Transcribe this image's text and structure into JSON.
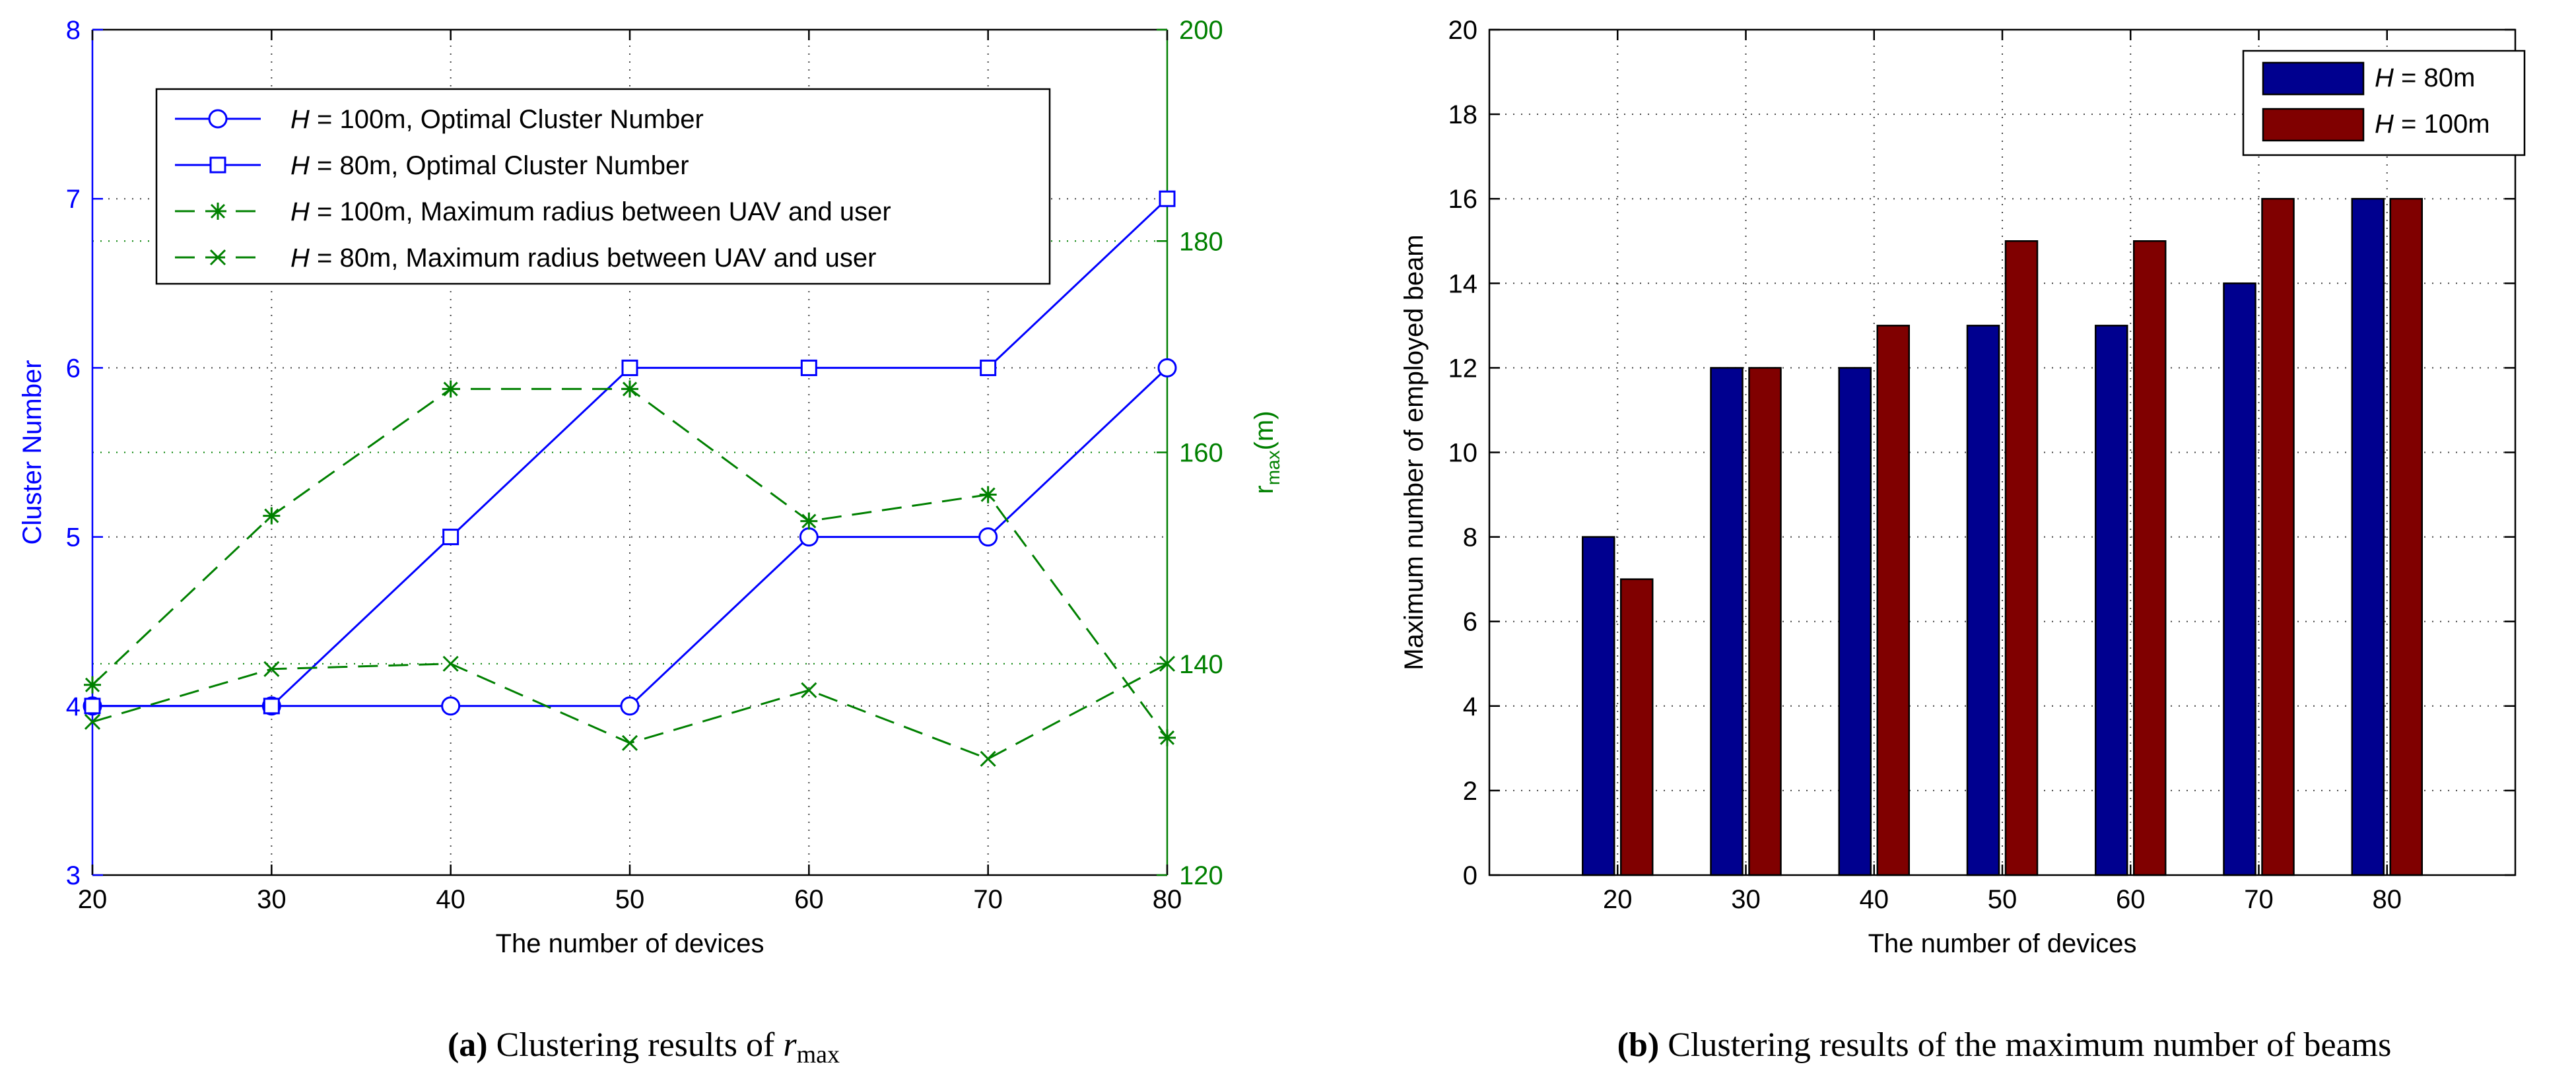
{
  "chart_data": [
    {
      "id": "a",
      "type": "line",
      "caption": {
        "label": "(a)",
        "text": "Clustering results of",
        "math": "r",
        "math_sub": "max"
      },
      "xlabel": "The number of devices",
      "x": [
        20,
        30,
        40,
        50,
        60,
        70,
        80
      ],
      "xlim": [
        20,
        80
      ],
      "xticks": [
        "20",
        "30",
        "40",
        "50",
        "60",
        "70",
        "80"
      ],
      "ylabel_left": "Cluster Number",
      "ylim_left": [
        3,
        8
      ],
      "yticks_left": [
        "3",
        "4",
        "5",
        "6",
        "7",
        "8"
      ],
      "ylabel_right": {
        "base": "r",
        "sub": "max",
        "suffix": "(m)"
      },
      "ylim_right": [
        120,
        200
      ],
      "yticks_right": [
        "120",
        "140",
        "160",
        "180",
        "200"
      ],
      "legend_location": "top-left",
      "series": [
        {
          "axis": "left",
          "style": "solid",
          "marker": "circle",
          "color": "#0000ff",
          "legend": {
            "var": "H",
            "rest": " = 100m, Optimal Cluster Number"
          },
          "values": [
            4,
            4,
            4,
            4,
            5,
            5,
            6
          ]
        },
        {
          "axis": "left",
          "style": "solid",
          "marker": "square",
          "color": "#0000ff",
          "legend": {
            "var": "H",
            "rest": " = 80m, Optimal Cluster Number"
          },
          "values": [
            4,
            4,
            5,
            6,
            6,
            6,
            7
          ]
        },
        {
          "axis": "right",
          "style": "dashed",
          "marker": "asterisk",
          "color": "#008000",
          "legend": {
            "var": "H",
            "rest": " = 100m, Maximum radius between UAV and user"
          },
          "values": [
            138,
            154,
            166,
            166,
            153.5,
            156,
            133
          ]
        },
        {
          "axis": "right",
          "style": "dashed",
          "marker": "cross",
          "color": "#008000",
          "legend": {
            "var": "H",
            "rest": " = 80m, Maximum radius between UAV and user"
          },
          "values": [
            134.5,
            139.5,
            140,
            132.5,
            137.5,
            131,
            140
          ]
        }
      ]
    },
    {
      "id": "b",
      "type": "bar",
      "caption": {
        "label": "(b)",
        "text": "Clustering results of the maximum number of beams"
      },
      "xlabel": "The number of devices",
      "ylabel": "Maximum number of employed beam",
      "categories": [
        "20",
        "30",
        "40",
        "50",
        "60",
        "70",
        "80"
      ],
      "ylim": [
        0,
        20
      ],
      "yticks": [
        "0",
        "2",
        "4",
        "6",
        "8",
        "10",
        "12",
        "14",
        "16",
        "18",
        "20"
      ],
      "legend_location": "top-right",
      "series": [
        {
          "legend": {
            "var": "H",
            "rest": " = 80m"
          },
          "color": "#00008f",
          "values": [
            8,
            12,
            12,
            13,
            13,
            14,
            16
          ]
        },
        {
          "legend": {
            "var": "H",
            "rest": " = 100m"
          },
          "color": "#800000",
          "values": [
            7,
            12,
            13,
            15,
            15,
            16,
            16
          ]
        }
      ]
    }
  ]
}
